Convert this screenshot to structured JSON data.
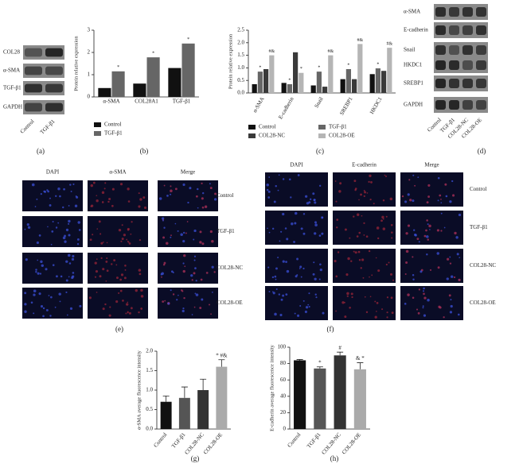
{
  "chart_data": [
    {
      "type": "bar",
      "ylabel": "Protein relative expression",
      "categories": [
        "α-SMA",
        "COL28A1",
        "TGF-β1"
      ],
      "series": [
        {
          "name": "Control",
          "color": "#111111",
          "values": [
            0.4,
            0.6,
            1.3
          ],
          "marks": [
            null,
            null,
            null
          ]
        },
        {
          "name": "TGF-β1",
          "color": "#666666",
          "values": [
            1.15,
            1.78,
            2.4
          ],
          "marks": [
            "*",
            "*",
            "*"
          ]
        }
      ],
      "ylim": [
        0,
        3
      ],
      "yticks": [
        0,
        1,
        2,
        3
      ]
    },
    {
      "type": "bar",
      "ylabel": "Protein relative expression",
      "categories": [
        "α-SMA",
        "E-cadherin",
        "Snail",
        "SREBP1",
        "HKDC1"
      ],
      "series": [
        {
          "name": "Control",
          "color": "#111111",
          "values": [
            0.35,
            0.4,
            0.3,
            0.55,
            0.75
          ],
          "marks": [
            null,
            null,
            null,
            null,
            null
          ]
        },
        {
          "name": "TGF-β1",
          "color": "#666666",
          "values": [
            0.85,
            0.35,
            0.85,
            0.95,
            0.98
          ],
          "marks": [
            "*",
            "*",
            "*",
            "*",
            "*"
          ]
        },
        {
          "name": "COL28-NC",
          "color": "#3a3a3a",
          "values": [
            0.95,
            1.62,
            0.25,
            0.55,
            0.88
          ],
          "marks": [
            null,
            null,
            null,
            null,
            null
          ]
        },
        {
          "name": "COL28-OE",
          "color": "#b5b5b5",
          "values": [
            1.5,
            0.8,
            1.5,
            1.95,
            1.8
          ],
          "marks": [
            "#&",
            "*",
            "#&",
            "#&",
            "#&"
          ]
        }
      ],
      "ylim": [
        0,
        2.5
      ],
      "yticks": [
        {
          "value": 0,
          "label": "0.0"
        },
        {
          "value": 0.5,
          "label": "0.5"
        },
        {
          "value": 1,
          "label": "1.0"
        },
        {
          "value": 1.5,
          "label": "1.5"
        },
        {
          "value": 2,
          "label": "2.0"
        },
        {
          "value": 2.5,
          "label": "2.5"
        }
      ]
    },
    {
      "type": "bar",
      "ylabel": "α-SMA average fluorescence intensity",
      "categories": [
        "Control",
        "TGF-β1",
        "COL28-NC",
        "COL28-OE"
      ],
      "values": [
        0.7,
        0.8,
        1.0,
        1.6
      ],
      "errors": [
        0.15,
        0.28,
        0.28,
        0.18
      ],
      "colors": [
        "#111111",
        "#555555",
        "#333333",
        "#aaaaaa"
      ],
      "marks": [
        null,
        null,
        null,
        "* #&"
      ],
      "ylim": [
        0,
        2
      ],
      "yticks": [
        {
          "value": 0,
          "label": "0.0"
        },
        {
          "value": 0.5,
          "label": "0.5"
        },
        {
          "value": 1,
          "label": "1.0"
        },
        {
          "value": 1.5,
          "label": "1.5"
        },
        {
          "value": 2,
          "label": "2.0"
        }
      ]
    },
    {
      "type": "bar",
      "ylabel": "E-cadherin average fluorescence intensity",
      "categories": [
        "Control",
        "TGF-β1",
        "COL28-NC",
        "COL28-OE"
      ],
      "values": [
        84,
        74,
        90,
        73
      ],
      "errors": [
        1,
        2,
        4,
        8
      ],
      "colors": [
        "#111111",
        "#555555",
        "#333333",
        "#aaaaaa"
      ],
      "marks": [
        null,
        "*",
        "#",
        "& *"
      ],
      "ylim": [
        0,
        100
      ],
      "yticks": [
        0,
        20,
        40,
        60,
        80,
        100
      ]
    }
  ],
  "blot_a": {
    "rows": [
      "COL28",
      "α-SMA",
      "TGF-β1",
      "GAPDH"
    ],
    "lanes": [
      "Control",
      "TGF-β1"
    ]
  },
  "blot_d": {
    "rows": [
      "α-SMA",
      "E-cadherin",
      "Snail",
      "HKDC1",
      "SREBP1",
      "GAPDH"
    ],
    "lanes": [
      "Control",
      "TGF-β1",
      "COL28-NC",
      "COL28-OE"
    ]
  },
  "if_e": {
    "columns": [
      "DAPI",
      "α-SMA",
      "Merge"
    ],
    "rows": [
      "Control",
      "TGF-β1",
      "COL28-NC",
      "COL28-OE"
    ]
  },
  "if_f": {
    "columns": [
      "DAPI",
      "E-cadherin",
      "Merge"
    ],
    "rows": [
      "Control",
      "TGF-β1",
      "COL28-NC",
      "COL28-OE"
    ]
  },
  "panel_letters": [
    "(a)",
    "(b)",
    "(c)",
    "(d)",
    "(e)",
    "(f)",
    "(g)",
    "(h)"
  ]
}
